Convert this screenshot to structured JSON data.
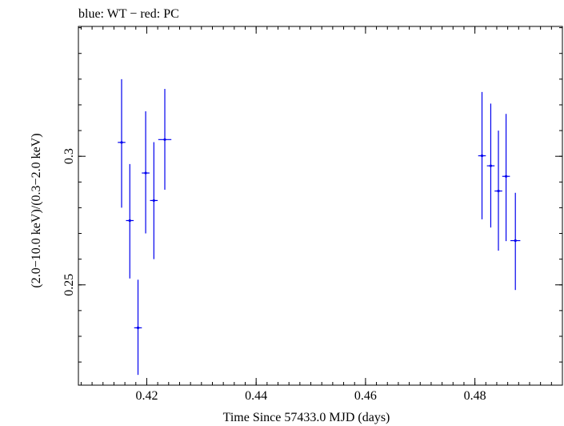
{
  "chart_data": {
    "type": "scatter",
    "title": "blue: WT − red: PC",
    "xlabel": "Time Since 57433.0 MJD (days)",
    "ylabel": "(2.0−10.0 keV)/(0.3−2.0 keV)",
    "xlim": [
      0.4075,
      0.496
    ],
    "ylim": [
      0.211,
      0.3505
    ],
    "x_ticks": [
      {
        "value": 0.42,
        "label": "0.42"
      },
      {
        "value": 0.44,
        "label": "0.44"
      },
      {
        "value": 0.46,
        "label": "0.46"
      },
      {
        "value": 0.48,
        "label": "0.48"
      }
    ],
    "y_ticks": [
      {
        "value": 0.25,
        "label": "0.25"
      },
      {
        "value": 0.3,
        "label": "0.3"
      }
    ],
    "grid": false,
    "series": [
      {
        "color": "#0000ee",
        "points": [
          {
            "x": 0.4154,
            "y": 0.3054,
            "y_lo": 0.28,
            "y_hi": 0.33,
            "x_err": 0.0007
          },
          {
            "x": 0.4169,
            "y": 0.275,
            "y_lo": 0.2525,
            "y_hi": 0.297,
            "x_err": 0.0007
          },
          {
            "x": 0.4184,
            "y": 0.2333,
            "y_lo": 0.215,
            "y_hi": 0.252,
            "x_err": 0.0007
          },
          {
            "x": 0.4198,
            "y": 0.2935,
            "y_lo": 0.27,
            "y_hi": 0.3175,
            "x_err": 0.0007
          },
          {
            "x": 0.4213,
            "y": 0.2828,
            "y_lo": 0.26,
            "y_hi": 0.3055,
            "x_err": 0.0007
          },
          {
            "x": 0.4233,
            "y": 0.3065,
            "y_lo": 0.287,
            "y_hi": 0.3262,
            "x_err": 0.0012
          },
          {
            "x": 0.4813,
            "y": 0.3002,
            "y_lo": 0.2755,
            "y_hi": 0.325,
            "x_err": 0.0007
          },
          {
            "x": 0.4829,
            "y": 0.2963,
            "y_lo": 0.2723,
            "y_hi": 0.3205,
            "x_err": 0.0007
          },
          {
            "x": 0.4843,
            "y": 0.2865,
            "y_lo": 0.2633,
            "y_hi": 0.31,
            "x_err": 0.0007
          },
          {
            "x": 0.4857,
            "y": 0.2922,
            "y_lo": 0.267,
            "y_hi": 0.3165,
            "x_err": 0.0007
          },
          {
            "x": 0.4874,
            "y": 0.2672,
            "y_lo": 0.248,
            "y_hi": 0.2858,
            "x_err": 0.0009
          }
        ]
      }
    ]
  }
}
